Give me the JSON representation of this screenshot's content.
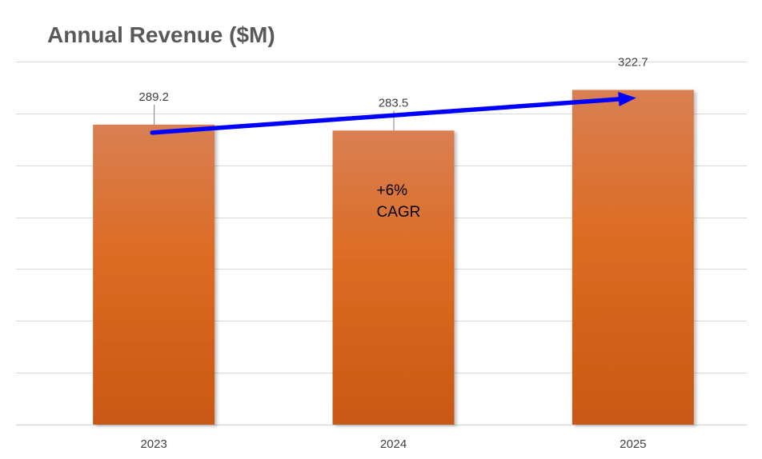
{
  "chart_data": {
    "type": "bar",
    "title": "Annual Revenue ($M)",
    "categories": [
      "2023",
      "2024",
      "2025"
    ],
    "values": [
      289.2,
      283.5,
      322.7
    ],
    "xlabel": "",
    "ylabel": "",
    "ylim": [
      0,
      350
    ],
    "grid": true,
    "legend": "none",
    "annotation": {
      "lines": [
        "+6%",
        "CAGR"
      ]
    },
    "trend_arrow": {
      "from_category": "2023",
      "to_category": "2025"
    }
  },
  "colors": {
    "bar_top": "#D97F52",
    "bar_mid": "#DC6B23",
    "bar_bottom": "#C85814",
    "grid": "#D9D9D9",
    "arrow": "#0000FF",
    "leader": "#7F7F7F"
  }
}
